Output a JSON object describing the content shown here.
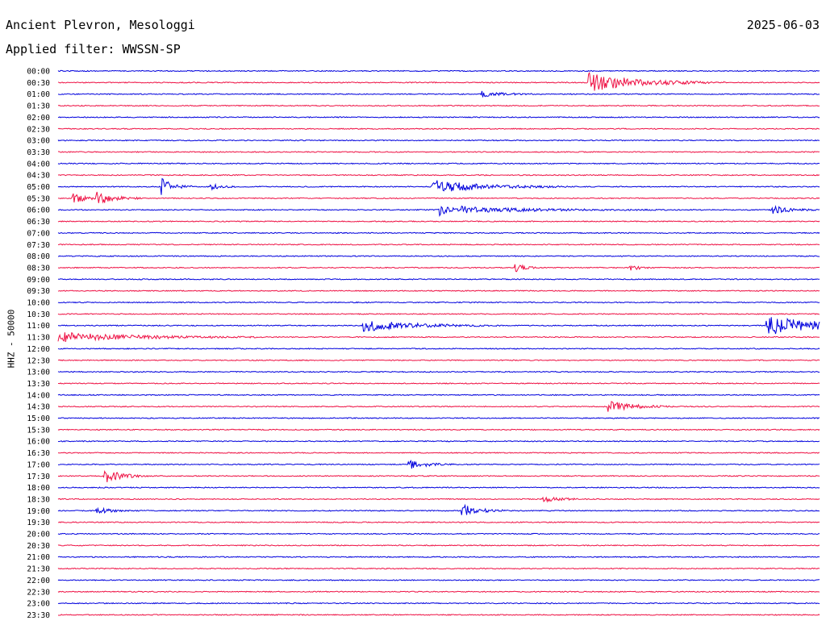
{
  "header": {
    "station": "Ancient Plevron, Mesologgi",
    "date": "2025-06-03",
    "filter_label": "Applied filter: WWSSN-SP"
  },
  "chart_data": {
    "type": "line",
    "title": "Ancient Plevron, Mesologgi",
    "ylabel": "HHZ - 50000",
    "trace_colors": [
      "#0000dd",
      "#ee1144"
    ],
    "time_labels": [
      "00:00",
      "00:30",
      "01:00",
      "01:30",
      "02:00",
      "02:30",
      "03:00",
      "03:30",
      "04:00",
      "04:30",
      "05:00",
      "05:30",
      "06:00",
      "06:30",
      "07:00",
      "07:30",
      "08:00",
      "08:30",
      "09:00",
      "09:30",
      "10:00",
      "10:30",
      "11:00",
      "11:30",
      "12:00",
      "12:30",
      "13:00",
      "13:30",
      "14:00",
      "14:30",
      "15:00",
      "15:30",
      "16:00",
      "16:30",
      "17:00",
      "17:30",
      "18:00",
      "18:30",
      "19:00",
      "19:30",
      "20:00",
      "20:30",
      "21:00",
      "21:30",
      "22:00",
      "22:30",
      "23:00",
      "23:30"
    ],
    "events": [
      {
        "row": 1,
        "t": 0.695,
        "amp": 1.0,
        "dur": 0.06
      },
      {
        "row": 2,
        "t": 0.555,
        "amp": 0.3,
        "dur": 0.025
      },
      {
        "row": 10,
        "t": 0.135,
        "amp": 0.9,
        "dur": 0.015
      },
      {
        "row": 10,
        "t": 0.2,
        "amp": 0.3,
        "dur": 0.015
      },
      {
        "row": 10,
        "t": 0.49,
        "amp": 0.7,
        "dur": 0.06
      },
      {
        "row": 11,
        "t": 0.018,
        "amp": 0.6,
        "dur": 0.015
      },
      {
        "row": 11,
        "t": 0.05,
        "amp": 0.7,
        "dur": 0.02
      },
      {
        "row": 12,
        "t": 0.5,
        "amp": 0.6,
        "dur": 0.015
      },
      {
        "row": 12,
        "t": 0.53,
        "amp": 0.3,
        "dur": 0.09
      },
      {
        "row": 12,
        "t": 0.935,
        "amp": 0.5,
        "dur": 0.02
      },
      {
        "row": 17,
        "t": 0.6,
        "amp": 0.5,
        "dur": 0.01
      },
      {
        "row": 17,
        "t": 0.75,
        "amp": 0.4,
        "dur": 0.01
      },
      {
        "row": 22,
        "t": 0.4,
        "amp": 0.6,
        "dur": 0.06
      },
      {
        "row": 22,
        "t": 0.93,
        "amp": 1.0,
        "dur": 0.07
      },
      {
        "row": 23,
        "t": 0.0,
        "amp": 0.5,
        "dur": 0.09
      },
      {
        "row": 29,
        "t": 0.72,
        "amp": 0.6,
        "dur": 0.03
      },
      {
        "row": 34,
        "t": 0.46,
        "amp": 0.5,
        "dur": 0.02
      },
      {
        "row": 35,
        "t": 0.06,
        "amp": 0.8,
        "dur": 0.02
      },
      {
        "row": 37,
        "t": 0.635,
        "amp": 0.3,
        "dur": 0.02
      },
      {
        "row": 38,
        "t": 0.05,
        "amp": 0.4,
        "dur": 0.015
      },
      {
        "row": 38,
        "t": 0.53,
        "amp": 0.7,
        "dur": 0.02
      }
    ]
  }
}
